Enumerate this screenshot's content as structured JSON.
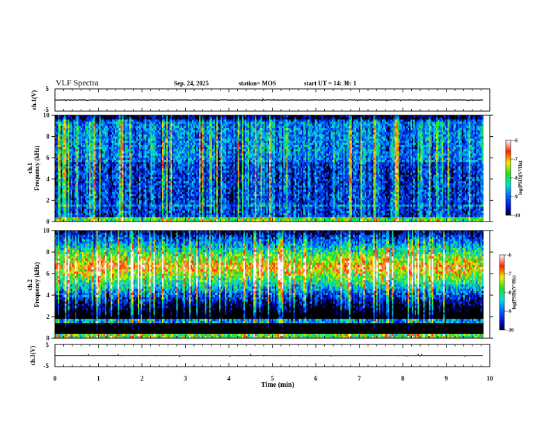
{
  "header": {
    "title": "VLF Spectra",
    "date": "Sep. 24, 2025",
    "station": "station= MOS",
    "start": "start  UT =   14: 30: 1"
  },
  "chart_data": [
    {
      "type": "line",
      "name": "ch.1 waveform",
      "ylabel": "ch.1(V)",
      "ylim": [
        -5,
        5
      ],
      "yticks": [
        "5",
        "-5"
      ],
      "xlim": [
        0,
        10
      ],
      "level": 0
    },
    {
      "type": "heatmap",
      "name": "ch.1 spectrogram",
      "ylabel_channel": "ch.1",
      "ylabel": "Frequency (kHz)",
      "ylim": [
        0,
        10
      ],
      "yticks": [
        "0",
        "2",
        "4",
        "6",
        "8",
        "10"
      ],
      "xlim": [
        0,
        10
      ],
      "data_end_min": 9.85,
      "colorbar": {
        "label": "log(PSD)(V²/Hz)",
        "range": [
          -10,
          -6
        ],
        "ticks": [
          "-6",
          "-7",
          "-8",
          "-9",
          "-10"
        ]
      }
    },
    {
      "type": "heatmap",
      "name": "ch.2 spectrogram",
      "ylabel_channel": "ch.2",
      "ylabel": "Frequency (kHz)",
      "ylim": [
        0,
        10
      ],
      "yticks": [
        "0",
        "2",
        "4",
        "6",
        "8",
        "10"
      ],
      "xlim": [
        0,
        10
      ],
      "data_end_min": 9.85,
      "colorbar": {
        "label": "log(PSD)(V²/Hz)",
        "range": [
          -10,
          -6
        ],
        "ticks": [
          "-6",
          "-7",
          "-8",
          "-9",
          "-10"
        ]
      }
    },
    {
      "type": "line",
      "name": "ch.3 waveform",
      "ylabel": "ch.3(V)",
      "ylim": [
        -5,
        5
      ],
      "yticks": [
        "5",
        "-5"
      ],
      "xlim": [
        0,
        10
      ],
      "level": 0
    }
  ],
  "xaxis": {
    "label": "Time (min)",
    "ticks": [
      "0",
      "1",
      "2",
      "3",
      "4",
      "5",
      "6",
      "7",
      "8",
      "9",
      "10"
    ]
  }
}
